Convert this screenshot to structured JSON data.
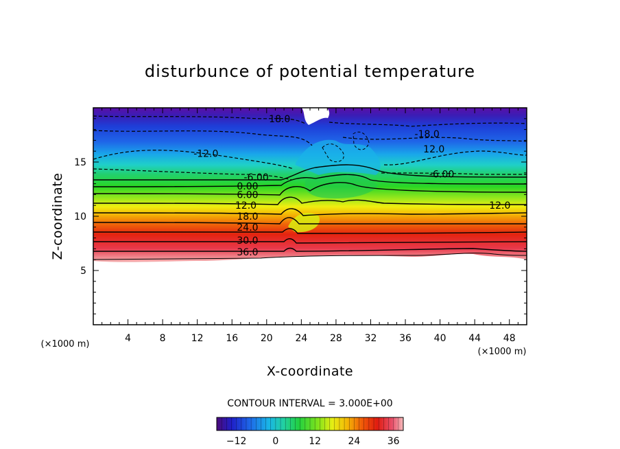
{
  "chart_data": {
    "type": "contour",
    "title": "disturbunce of potential temperature",
    "xlabel": "X-coordinate",
    "ylabel": "Z-coordinate",
    "x_unit": "(×1000 m)",
    "xlim": [
      0,
      50
    ],
    "ylim": [
      0,
      20
    ],
    "x_ticks": [
      4,
      8,
      12,
      16,
      20,
      24,
      28,
      32,
      36,
      40,
      44,
      48
    ],
    "y_ticks": [
      5,
      10,
      15
    ],
    "contour_interval_text": "CONTOUR INTERVAL = 3.000E+00",
    "contour_interval": 3,
    "value_range": [
      -18,
      39
    ],
    "contour_labels": [
      {
        "text": "18.0",
        "x": 21.5,
        "y": 19.0
      },
      {
        "text": "-18.0",
        "x": 38.5,
        "y": 17.6
      },
      {
        "text": "-12.0",
        "x": 13.0,
        "y": 15.8
      },
      {
        "text": "12.0",
        "x": 39.3,
        "y": 16.2
      },
      {
        "text": "-6.00",
        "x": 18.8,
        "y": 13.6
      },
      {
        "text": "-6.00",
        "x": 40.2,
        "y": 13.9
      },
      {
        "text": "0.00",
        "x": 17.8,
        "y": 12.8
      },
      {
        "text": "6.00",
        "x": 17.8,
        "y": 12.0
      },
      {
        "text": "12.0",
        "x": 17.6,
        "y": 11.0
      },
      {
        "text": "12.0",
        "x": 46.9,
        "y": 11.0
      },
      {
        "text": "18.0",
        "x": 17.8,
        "y": 10.0
      },
      {
        "text": "24.0",
        "x": 17.8,
        "y": 9.0
      },
      {
        "text": "30.0",
        "x": 17.8,
        "y": 7.8
      },
      {
        "text": "36.0",
        "x": 17.8,
        "y": 6.7
      }
    ],
    "colorbar": {
      "ticks": [
        -12,
        0,
        12,
        24,
        36
      ]
    },
    "grid": false,
    "legend": "colorbar bottom-center"
  }
}
